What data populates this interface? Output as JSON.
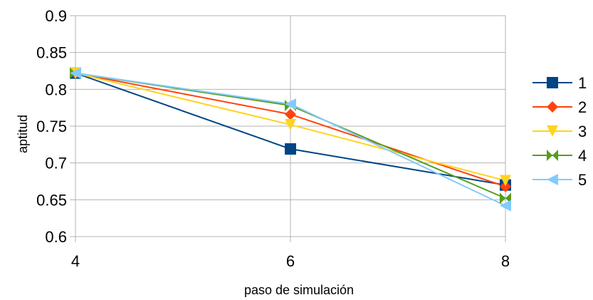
{
  "chart_data": {
    "type": "line",
    "x": [
      4,
      6,
      8
    ],
    "xlabel": "paso de simulación",
    "ylabel": "aptitud",
    "xlim": [
      4,
      8
    ],
    "ylim": [
      0.6,
      0.9
    ],
    "x_ticks": [
      "4",
      "6",
      "8"
    ],
    "y_ticks": [
      "0.9",
      "0.85",
      "0.8",
      "0.75",
      "0.7",
      "0.65",
      "0.6"
    ],
    "grid": "horizontal",
    "legend_position": "right",
    "series": [
      {
        "name": "1",
        "color": "#004586",
        "marker": "square",
        "values": [
          0.822,
          0.719,
          0.67
        ]
      },
      {
        "name": "2",
        "color": "#ff420e",
        "marker": "diamond",
        "values": [
          0.822,
          0.766,
          0.668
        ]
      },
      {
        "name": "3",
        "color": "#ffd320",
        "marker": "triangle-down",
        "values": [
          0.822,
          0.752,
          0.676
        ]
      },
      {
        "name": "4",
        "color": "#579d1c",
        "marker": "bowtie",
        "values": [
          0.822,
          0.778,
          0.652
        ]
      },
      {
        "name": "5",
        "color": "#83caff",
        "marker": "triangle-left",
        "values": [
          0.822,
          0.78,
          0.642
        ]
      }
    ]
  }
}
